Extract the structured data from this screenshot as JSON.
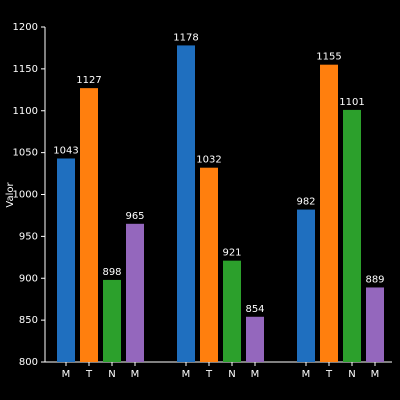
{
  "chart_data": {
    "type": "bar",
    "ylabel": "Valor",
    "colors": [
      "#1f6fbf",
      "#ff7f0e",
      "#2ca02c",
      "#9467bd"
    ],
    "groups": [
      {
        "categories": [
          "M",
          "T",
          "N",
          "M"
        ],
        "values": [
          1043,
          1127,
          898,
          965
        ]
      },
      {
        "categories": [
          "M",
          "T",
          "N",
          "M"
        ],
        "values": [
          1178,
          1032,
          921,
          854
        ]
      },
      {
        "categories": [
          "M",
          "T",
          "N",
          "M"
        ],
        "values": [
          982,
          1155,
          1101,
          889
        ]
      }
    ],
    "ylim": [
      800,
      1200
    ],
    "yticks": [
      800,
      850,
      900,
      950,
      1000,
      1050,
      1100,
      1150,
      1200
    ]
  }
}
